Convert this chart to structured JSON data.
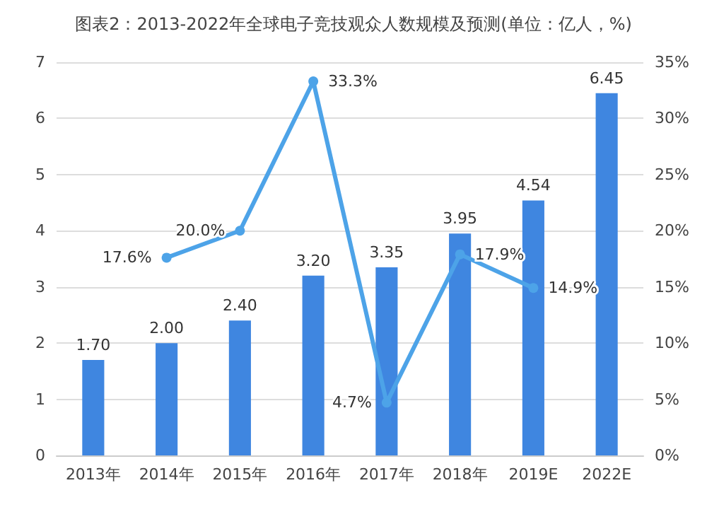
{
  "chart_data": {
    "type": "bar",
    "title": "图表2：2013-2022年全球电子竞技观众人数规模及预测(单位：亿人，%)",
    "categories": [
      "2013年",
      "2014年",
      "2015年",
      "2016年",
      "2017年",
      "2018年",
      "2019E",
      "2022E"
    ],
    "series": [
      {
        "color": "#3f86e0",
        "values": [
          1.7,
          2.0,
          2.4,
          3.2,
          3.35,
          3.95,
          4.54,
          6.45
        ],
        "value_labels": [
          "1.70",
          "2.00",
          "2.40",
          "3.20",
          "3.35",
          "3.95",
          "4.54",
          "6.45"
        ]
      },
      {
        "type": "line",
        "axis": "y2",
        "color": "#4da3e8",
        "values": [
          null,
          17.6,
          20.0,
          33.3,
          4.7,
          17.9,
          14.9,
          null
        ],
        "value_labels": [
          null,
          "17.6%",
          "20.0%",
          "33.3%",
          "4.7%",
          "17.9%",
          "14.9%",
          null
        ]
      }
    ],
    "ylim": [
      0,
      7
    ],
    "yticks": [
      0,
      1,
      2,
      3,
      4,
      5,
      6,
      7
    ],
    "y2lim": [
      0,
      35
    ],
    "y2ticks": [
      {
        "value": 0,
        "label": "0%"
      },
      {
        "value": 5,
        "label": "5%"
      },
      {
        "value": 10,
        "label": "10%"
      },
      {
        "value": 15,
        "label": "15%"
      },
      {
        "value": 20,
        "label": "20%"
      },
      {
        "value": 25,
        "label": "25%"
      },
      {
        "value": 30,
        "label": "30%"
      },
      {
        "value": 35,
        "label": "35%"
      }
    ],
    "grid": "y",
    "marker": "circle",
    "line_style": "solid"
  }
}
